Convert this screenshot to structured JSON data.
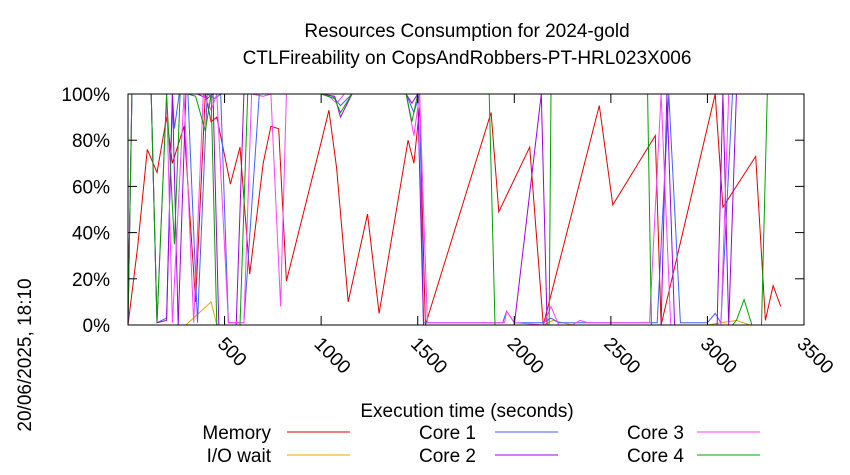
{
  "chart_data": {
    "type": "line",
    "title": "Resources Consumption for 2024-gold",
    "subtitle": "CTLFireability on CopsAndRobbers-PT-HRL023X006",
    "xlabel": "Execution time (seconds)",
    "ylabel": "",
    "side_label": "20/06/2025, 18:10",
    "xlim": [
      0,
      3500
    ],
    "ylim": [
      0,
      100
    ],
    "x_ticks": [
      500,
      1000,
      1500,
      2000,
      2500,
      3000,
      3500
    ],
    "y_ticks": [
      0,
      20,
      40,
      60,
      80,
      100
    ],
    "y_tick_labels": [
      "0%",
      "20%",
      "40%",
      "60%",
      "80%",
      "100%"
    ],
    "grid": false,
    "legend_position": "bottom",
    "series": [
      {
        "name": "Memory",
        "color": "#e00000",
        "points": [
          [
            0,
            0
          ],
          [
            50,
            34
          ],
          [
            100,
            76
          ],
          [
            150,
            66
          ],
          [
            200,
            90
          ],
          [
            230,
            70
          ],
          [
            290,
            86
          ],
          [
            350,
            10
          ],
          [
            400,
            100
          ],
          [
            430,
            88
          ],
          [
            460,
            90
          ],
          [
            530,
            61
          ],
          [
            580,
            77
          ],
          [
            630,
            22
          ],
          [
            700,
            70
          ],
          [
            740,
            86
          ],
          [
            780,
            85
          ],
          [
            820,
            19
          ],
          [
            1000,
            79
          ],
          [
            1040,
            93
          ],
          [
            1080,
            68
          ],
          [
            1140,
            10
          ],
          [
            1240,
            48
          ],
          [
            1300,
            5
          ],
          [
            1450,
            80
          ],
          [
            1480,
            70
          ],
          [
            1510,
            94
          ],
          [
            1540,
            0
          ],
          [
            1880,
            92
          ],
          [
            1920,
            49
          ],
          [
            2080,
            77
          ],
          [
            2150,
            0
          ],
          [
            2440,
            95
          ],
          [
            2510,
            52
          ],
          [
            2730,
            82
          ],
          [
            2760,
            0
          ],
          [
            3040,
            100
          ],
          [
            3080,
            51
          ],
          [
            3250,
            73
          ],
          [
            3300,
            2
          ],
          [
            3340,
            17
          ],
          [
            3380,
            8
          ]
        ]
      },
      {
        "name": "I/O wait",
        "color": "#e8a000",
        "points": [
          [
            0,
            0
          ],
          [
            120,
            0
          ],
          [
            240,
            0
          ],
          [
            300,
            0
          ],
          [
            430,
            10
          ],
          [
            460,
            0
          ],
          [
            1500,
            0
          ],
          [
            1950,
            0
          ],
          [
            2150,
            0
          ],
          [
            2200,
            2
          ],
          [
            2300,
            0
          ],
          [
            2800,
            0
          ],
          [
            3000,
            0
          ],
          [
            3150,
            2
          ],
          [
            3220,
            0
          ],
          [
            3380,
            0
          ]
        ]
      },
      {
        "name": "Core 1",
        "color": "#4060ff",
        "points": [
          [
            0,
            0
          ],
          [
            20,
            100
          ],
          [
            120,
            100
          ],
          [
            150,
            1
          ],
          [
            200,
            3
          ],
          [
            230,
            100
          ],
          [
            240,
            85
          ],
          [
            265,
            100
          ],
          [
            310,
            100
          ],
          [
            360,
            1
          ],
          [
            410,
            100
          ],
          [
            450,
            98
          ],
          [
            480,
            100
          ],
          [
            520,
            1
          ],
          [
            600,
            1
          ],
          [
            680,
            100
          ],
          [
            1000,
            100
          ],
          [
            1060,
            99
          ],
          [
            1100,
            95
          ],
          [
            1160,
            100
          ],
          [
            1440,
            100
          ],
          [
            1480,
            92
          ],
          [
            1510,
            100
          ],
          [
            1530,
            1
          ],
          [
            1940,
            1
          ],
          [
            1960,
            6
          ],
          [
            2000,
            1
          ],
          [
            2150,
            1
          ],
          [
            2190,
            3
          ],
          [
            2230,
            1
          ],
          [
            2500,
            1
          ],
          [
            2700,
            1
          ],
          [
            2740,
            1
          ],
          [
            2800,
            100
          ],
          [
            2860,
            1
          ],
          [
            2960,
            1
          ],
          [
            3000,
            1
          ],
          [
            3040,
            5
          ],
          [
            3070,
            1
          ],
          [
            3130,
            100
          ],
          [
            3380,
            100
          ]
        ]
      },
      {
        "name": "Core 2",
        "color": "#a000e0",
        "points": [
          [
            0,
            0
          ],
          [
            20,
            100
          ],
          [
            120,
            100
          ],
          [
            150,
            1
          ],
          [
            200,
            2
          ],
          [
            230,
            100
          ],
          [
            260,
            0
          ],
          [
            300,
            100
          ],
          [
            360,
            100
          ],
          [
            410,
            98
          ],
          [
            440,
            100
          ],
          [
            470,
            0
          ],
          [
            560,
            0
          ],
          [
            600,
            100
          ],
          [
            1000,
            100
          ],
          [
            1070,
            99
          ],
          [
            1100,
            90
          ],
          [
            1160,
            100
          ],
          [
            1440,
            100
          ],
          [
            1470,
            96
          ],
          [
            1500,
            100
          ],
          [
            1530,
            0
          ],
          [
            1950,
            0
          ],
          [
            2000,
            0
          ],
          [
            2140,
            100
          ],
          [
            2170,
            0
          ],
          [
            2500,
            0
          ],
          [
            2760,
            0
          ],
          [
            2790,
            100
          ],
          [
            2830,
            0
          ],
          [
            3050,
            0
          ],
          [
            3080,
            100
          ],
          [
            3110,
            0
          ],
          [
            3150,
            100
          ],
          [
            3380,
            100
          ]
        ]
      },
      {
        "name": "Core 3",
        "color": "#ff40ff",
        "points": [
          [
            0,
            0
          ],
          [
            20,
            100
          ],
          [
            120,
            100
          ],
          [
            150,
            1
          ],
          [
            200,
            100
          ],
          [
            230,
            1
          ],
          [
            290,
            100
          ],
          [
            340,
            1
          ],
          [
            390,
            100
          ],
          [
            430,
            93
          ],
          [
            460,
            100
          ],
          [
            520,
            1
          ],
          [
            600,
            1
          ],
          [
            640,
            100
          ],
          [
            700,
            99
          ],
          [
            740,
            100
          ],
          [
            790,
            8
          ],
          [
            820,
            100
          ],
          [
            1000,
            100
          ],
          [
            1040,
            99
          ],
          [
            1080,
            96
          ],
          [
            1120,
            100
          ],
          [
            1440,
            100
          ],
          [
            1480,
            82
          ],
          [
            1510,
            100
          ],
          [
            1550,
            1
          ],
          [
            1950,
            1
          ],
          [
            1960,
            6
          ],
          [
            2000,
            1
          ],
          [
            2150,
            0
          ],
          [
            2190,
            8
          ],
          [
            2230,
            0
          ],
          [
            2300,
            0
          ],
          [
            2340,
            2
          ],
          [
            2380,
            1
          ],
          [
            2500,
            1
          ],
          [
            2700,
            1
          ],
          [
            2760,
            100
          ],
          [
            2810,
            0
          ],
          [
            3070,
            0
          ],
          [
            3110,
            100
          ],
          [
            3380,
            100
          ]
        ]
      },
      {
        "name": "Core 4",
        "color": "#00a000",
        "points": [
          [
            0,
            0
          ],
          [
            20,
            100
          ],
          [
            120,
            100
          ],
          [
            150,
            1
          ],
          [
            200,
            100
          ],
          [
            240,
            35
          ],
          [
            270,
            100
          ],
          [
            310,
            100
          ],
          [
            350,
            99
          ],
          [
            400,
            84
          ],
          [
            430,
            100
          ],
          [
            460,
            0
          ],
          [
            580,
            0
          ],
          [
            620,
            100
          ],
          [
            1000,
            100
          ],
          [
            1070,
            98
          ],
          [
            1100,
            92
          ],
          [
            1160,
            100
          ],
          [
            1440,
            100
          ],
          [
            1470,
            88
          ],
          [
            1500,
            100
          ],
          [
            1530,
            100
          ],
          [
            1870,
            100
          ],
          [
            1900,
            0
          ],
          [
            2180,
            0
          ],
          [
            2190,
            100
          ],
          [
            2510,
            100
          ],
          [
            2570,
            100
          ],
          [
            2690,
            100
          ],
          [
            2710,
            0
          ],
          [
            3130,
            0
          ],
          [
            3150,
            2
          ],
          [
            3190,
            11
          ],
          [
            3230,
            0
          ],
          [
            3280,
            0
          ],
          [
            3310,
            100
          ],
          [
            3380,
            100
          ]
        ]
      }
    ]
  }
}
